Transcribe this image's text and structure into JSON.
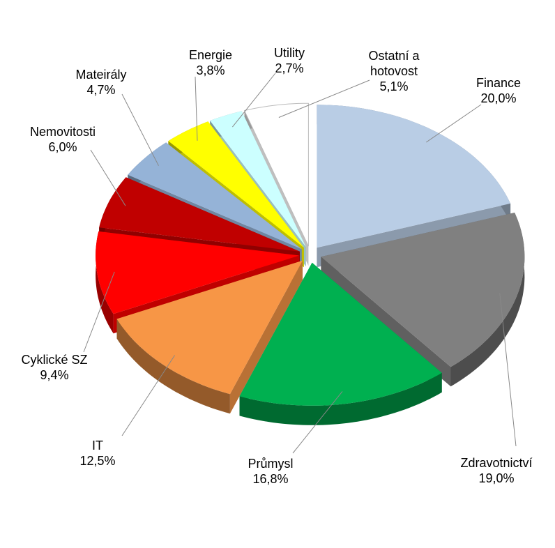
{
  "chart_data": {
    "type": "pie",
    "categories": [
      "Finance",
      "Zdravotnictví",
      "Průmysl",
      "IT",
      "Cyklické SZ",
      "Nemovitosti",
      "Mateirály",
      "Energie",
      "Utility",
      "Ostatní a hotovost"
    ],
    "values": [
      20.0,
      19.0,
      16.8,
      12.5,
      9.4,
      6.0,
      4.7,
      3.8,
      2.7,
      5.1
    ],
    "value_labels": [
      "20,0%",
      "19,0%",
      "16,8%",
      "12,5%",
      "9,4%",
      "6,0%",
      "4,7%",
      "3,8%",
      "2,7%",
      "5,1%"
    ],
    "colors": [
      "#b9cde5",
      "#808080",
      "#00b050",
      "#f79646",
      "#ff0000",
      "#c00000",
      "#95b3d7",
      "#ffff00",
      "#ccffff",
      "#ffffff"
    ]
  }
}
